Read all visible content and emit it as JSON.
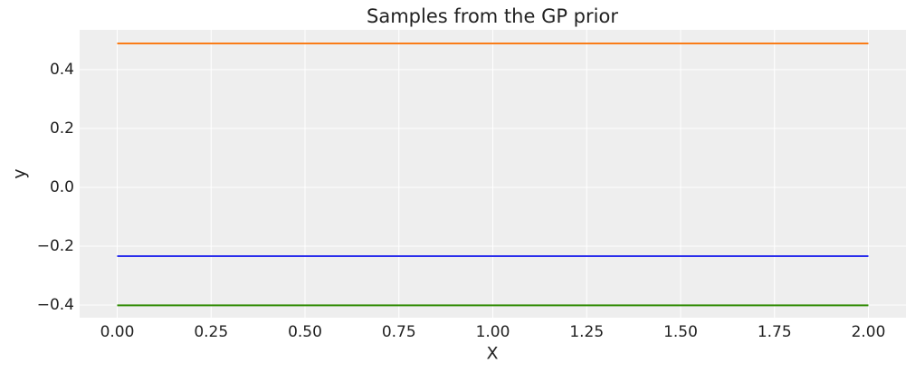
{
  "chart_data": {
    "type": "line",
    "title": "Samples from the GP prior",
    "x_label": "X",
    "y_label": "y",
    "x": [
      0,
      2
    ],
    "series": [
      {
        "color": "#2a2eec",
        "values": [
          -0.234,
          -0.234
        ]
      },
      {
        "color": "#fa7c17",
        "values": [
          0.489,
          0.489
        ]
      },
      {
        "color": "#328c06",
        "values": [
          -0.401,
          -0.401
        ]
      }
    ],
    "xlim": [
      -0.1,
      2.1
    ],
    "ylim": [
      -0.443,
      0.535
    ],
    "xticks": [
      {
        "value": 0,
        "label": "0.00"
      },
      {
        "value": 0.25,
        "label": "0.25"
      },
      {
        "value": 0.5,
        "label": "0.50"
      },
      {
        "value": 0.75,
        "label": "0.75"
      },
      {
        "value": 1,
        "label": "1.00"
      },
      {
        "value": 1.25,
        "label": "1.25"
      },
      {
        "value": 1.5,
        "label": "1.50"
      },
      {
        "value": 1.75,
        "label": "1.75"
      },
      {
        "value": 2,
        "label": "2.00"
      }
    ],
    "yticks": [
      {
        "value": -0.4,
        "label": "−0.4"
      },
      {
        "value": -0.2,
        "label": "−0.2"
      },
      {
        "value": 0,
        "label": "0.0"
      },
      0.2,
      0.4
    ],
    "grid": true,
    "background": "#eeeeee"
  }
}
